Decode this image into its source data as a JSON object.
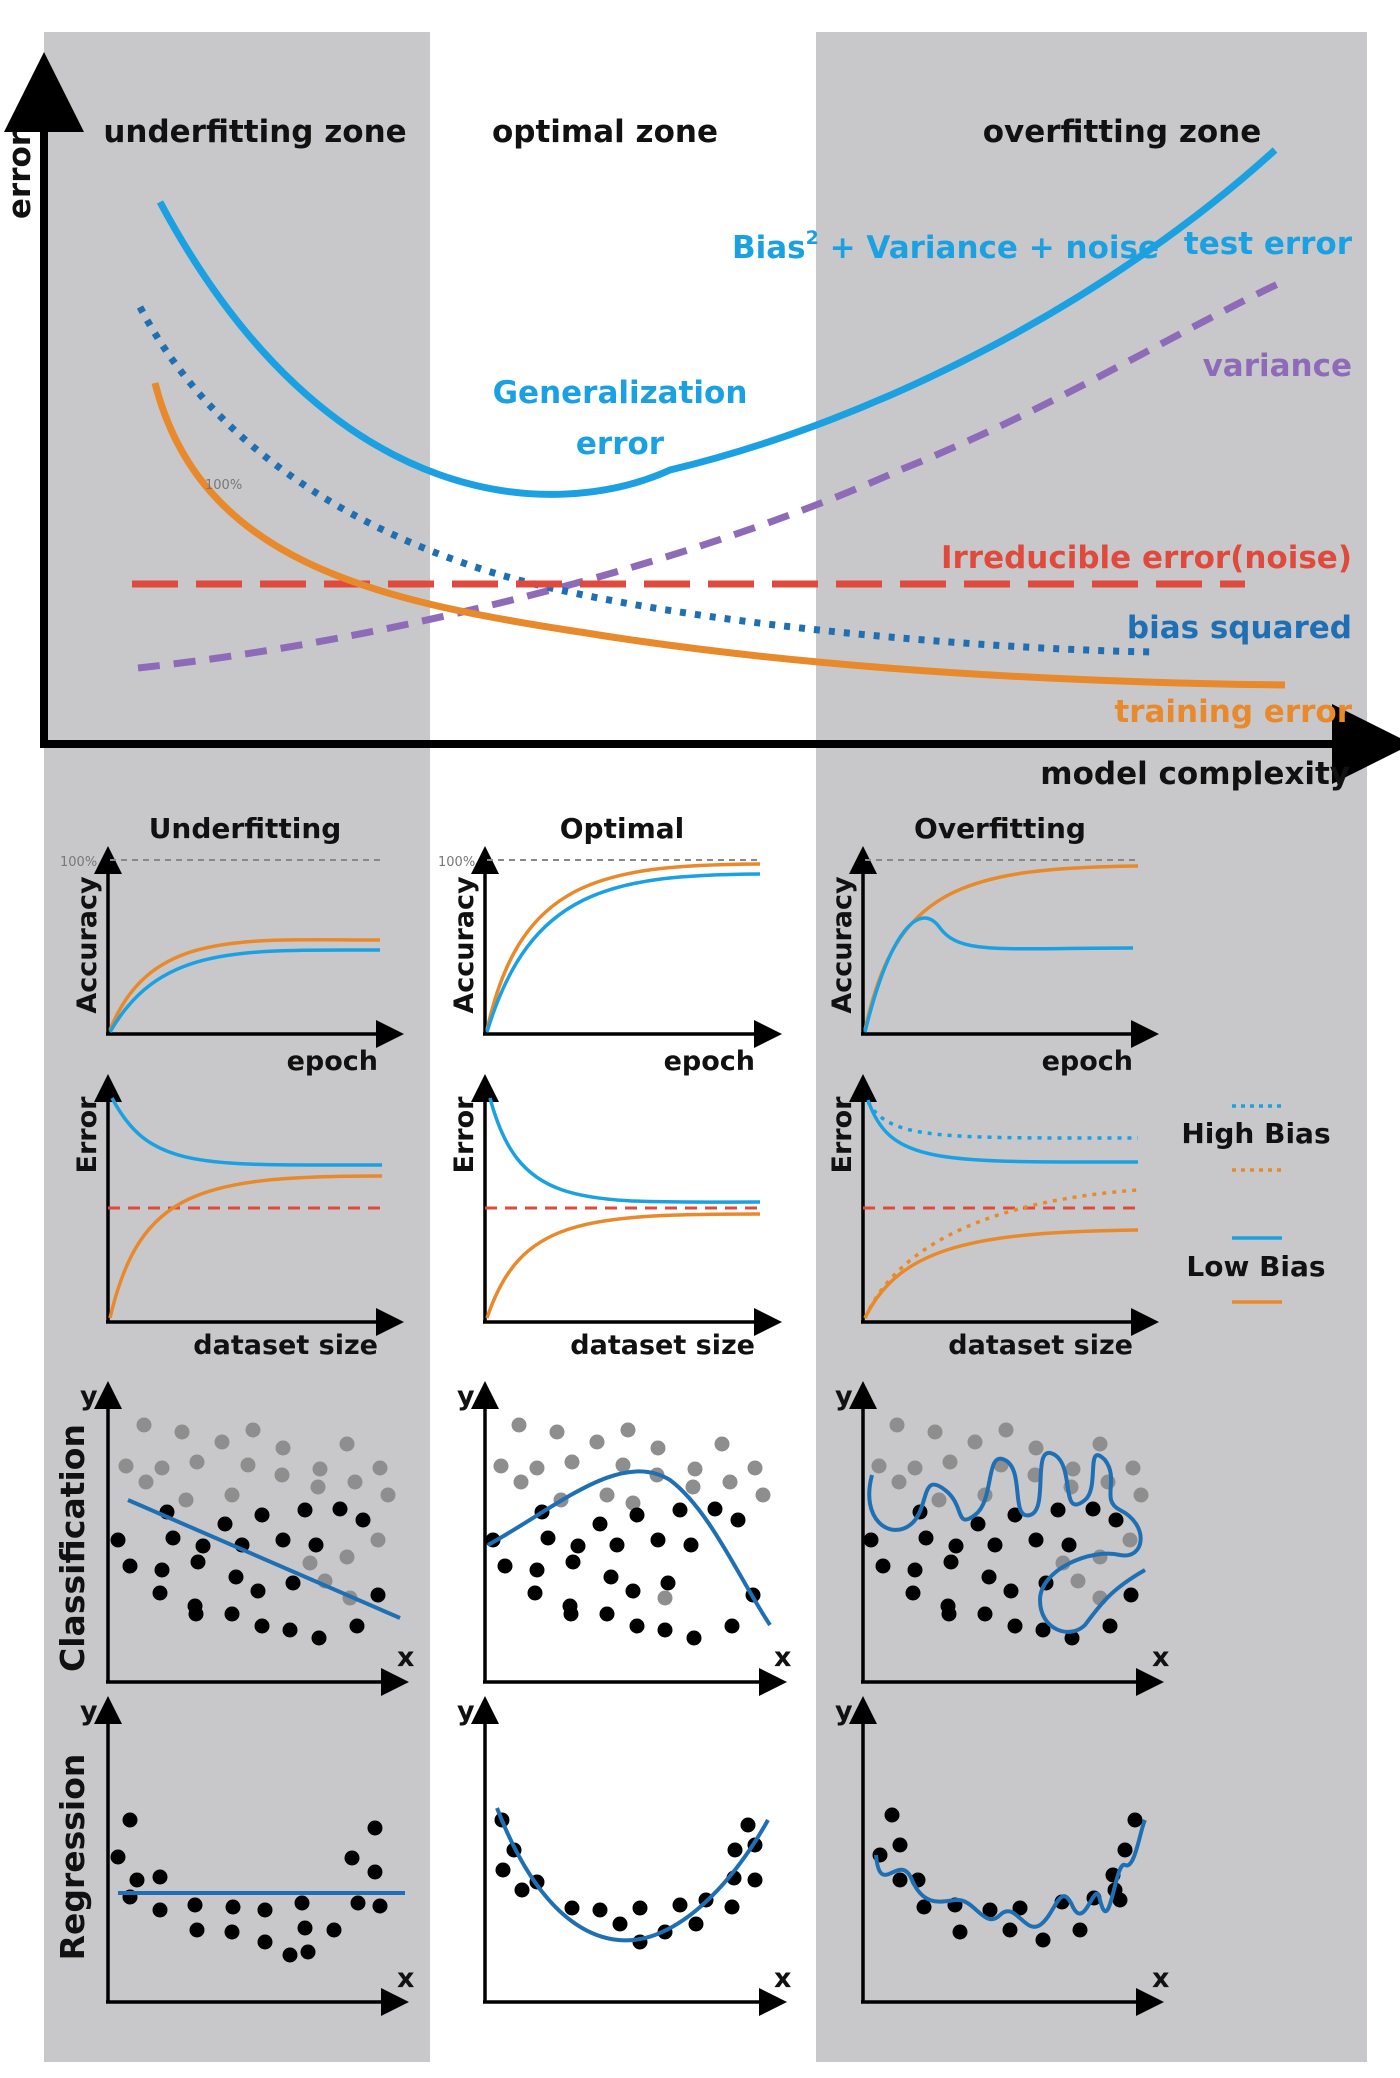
{
  "zones": {
    "underfitting": "underfitting zone",
    "optimal": "optimal zone",
    "overfitting": "overfitting zone"
  },
  "main": {
    "y_axis_label": "error",
    "x_axis_label": "model complexity",
    "curve_labels": {
      "bias_variance_noise_prefix": "Bias",
      "superscript": "2",
      "bias_variance_noise_suffix": " + Variance + noise",
      "test_error": "test error",
      "variance": "variance",
      "generalization_line1": "Generalization",
      "generalization_line2": "error",
      "irreducible": "Irreducible error(noise)",
      "bias_squared": "bias squared",
      "training_error": "training error",
      "hundred_percent": "100%"
    }
  },
  "columns": {
    "titles": [
      "Underfitting",
      "Optimal",
      "Overfitting"
    ]
  },
  "small_axes": {
    "accuracy": "Accuracy",
    "epoch": "epoch",
    "error": "Error",
    "dataset_size": "dataset size",
    "hundred_percent": "100%",
    "x": "x",
    "y": "y"
  },
  "rows": {
    "classification": "Classification",
    "regression": "Regression"
  },
  "legend": {
    "high_bias": "High Bias",
    "low_bias": "Low Bias"
  },
  "colors": {
    "blue": "#1ba1e2",
    "dark_blue": "#1f6fb4",
    "orange": "#e8892b",
    "purple": "#8e6bb8",
    "red": "#e04a3c",
    "zone_gray": "#c8c8ca",
    "gray_dot": "#8e8e8e"
  }
}
